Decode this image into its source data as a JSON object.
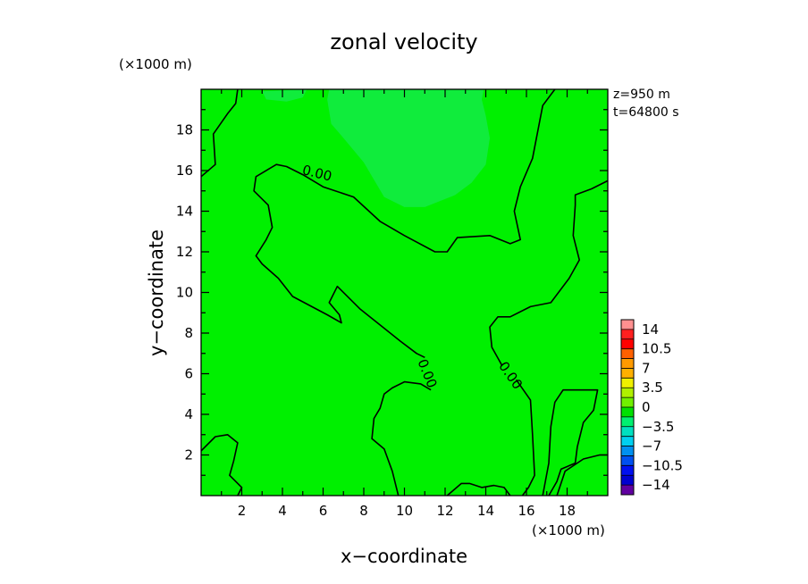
{
  "chart_data": {
    "type": "contour",
    "title": "zonal velocity",
    "xlabel": "x−coordinate",
    "ylabel": "y−coordinate",
    "x_unit": "(×1000 m)",
    "y_unit": "(×1000 m)",
    "xlim": [
      0,
      20
    ],
    "ylim": [
      0,
      20
    ],
    "x_ticks": [
      2,
      4,
      6,
      8,
      10,
      12,
      14,
      16,
      18
    ],
    "y_ticks": [
      2,
      4,
      6,
      8,
      10,
      12,
      14,
      16,
      18
    ],
    "x_tick_labels": [
      "2",
      "4",
      "6",
      "8",
      "10",
      "12",
      "14",
      "16",
      "18"
    ],
    "y_tick_labels": [
      "2",
      "4",
      "6",
      "8",
      "10",
      "12",
      "14",
      "16",
      "18"
    ],
    "info": [
      "z=950 m",
      "t=64800 s"
    ],
    "contour_labels": [
      "0.00",
      "0.00",
      "0.00"
    ],
    "zero_contours": [
      [
        [
          0,
          15.7
        ],
        [
          0.7,
          16.3
        ],
        [
          0.6,
          17.8
        ],
        [
          1.3,
          18.8
        ],
        [
          1.7,
          19.3
        ],
        [
          1.8,
          20
        ]
      ],
      [
        [
          11,
          6.8
        ],
        [
          10.6,
          7.0
        ],
        [
          9.8,
          7.6
        ],
        [
          7.8,
          9.2
        ],
        [
          6.7,
          10.3
        ],
        [
          6.3,
          9.5
        ],
        [
          6.8,
          8.9
        ],
        [
          6.9,
          8.5
        ],
        [
          6.2,
          8.9
        ],
        [
          4.5,
          9.8
        ],
        [
          3.8,
          10.7
        ],
        [
          3.0,
          11.4
        ],
        [
          2.7,
          11.8
        ],
        [
          3.2,
          12.6
        ],
        [
          3.5,
          13.2
        ],
        [
          3.3,
          14.3
        ],
        [
          2.6,
          15.0
        ],
        [
          2.7,
          15.7
        ],
        [
          3.7,
          16.3
        ],
        [
          4.2,
          16.2
        ],
        [
          5.0,
          15.8
        ],
        [
          6.0,
          15.2
        ],
        [
          7.5,
          14.7
        ],
        [
          8.8,
          13.5
        ],
        [
          10.0,
          12.8
        ],
        [
          11.5,
          12.0
        ],
        [
          12.1,
          12.0
        ],
        [
          12.6,
          12.7
        ],
        [
          14.2,
          12.8
        ],
        [
          15.2,
          12.4
        ],
        [
          15.7,
          12.6
        ],
        [
          15.4,
          14.0
        ],
        [
          15.7,
          15.2
        ],
        [
          16.3,
          16.6
        ],
        [
          16.8,
          19.2
        ],
        [
          17.4,
          20
        ]
      ],
      [
        [
          11.3,
          5.2
        ],
        [
          10.8,
          5.5
        ],
        [
          10.0,
          5.6
        ],
        [
          9.4,
          5.3
        ],
        [
          9.0,
          5.0
        ],
        [
          8.8,
          4.3
        ],
        [
          8.5,
          3.8
        ],
        [
          8.4,
          2.8
        ],
        [
          9.0,
          2.3
        ],
        [
          9.4,
          1.2
        ],
        [
          9.7,
          0
        ]
      ],
      [
        [
          14.8,
          6.4
        ],
        [
          14.3,
          7.3
        ],
        [
          14.2,
          8.3
        ],
        [
          14.6,
          8.8
        ],
        [
          15.2,
          8.8
        ],
        [
          16.2,
          9.3
        ],
        [
          17.2,
          9.5
        ],
        [
          18.1,
          10.7
        ],
        [
          18.6,
          11.6
        ],
        [
          18.3,
          12.8
        ],
        [
          18.4,
          14.3
        ],
        [
          18.4,
          14.8
        ],
        [
          19.2,
          15.1
        ],
        [
          20,
          15.5
        ]
      ],
      [
        [
          15.5,
          5.7
        ],
        [
          16.2,
          4.7
        ],
        [
          16.3,
          3.0
        ],
        [
          16.4,
          1.0
        ],
        [
          16.1,
          0.4
        ],
        [
          15.8,
          0
        ]
      ],
      [
        [
          0,
          2.2
        ],
        [
          0.7,
          2.9
        ],
        [
          1.3,
          3.0
        ],
        [
          1.8,
          2.6
        ],
        [
          1.6,
          1.7
        ],
        [
          1.4,
          1.0
        ],
        [
          2.0,
          0.4
        ],
        [
          1.8,
          0
        ]
      ],
      [
        [
          12.1,
          0
        ],
        [
          12.8,
          0.6
        ],
        [
          13.2,
          0.6
        ],
        [
          13.8,
          0.4
        ],
        [
          14.4,
          0.5
        ],
        [
          14.9,
          0.4
        ],
        [
          15.2,
          0
        ]
      ],
      [
        [
          16.8,
          0
        ],
        [
          17.1,
          1.6
        ],
        [
          17.2,
          3.4
        ],
        [
          17.4,
          4.6
        ],
        [
          17.8,
          5.2
        ],
        [
          18.5,
          5.2
        ],
        [
          19.5,
          5.2
        ],
        [
          19.3,
          4.2
        ],
        [
          18.8,
          3.6
        ],
        [
          18.5,
          2.4
        ],
        [
          18.4,
          1.6
        ],
        [
          17.7,
          1.3
        ],
        [
          17.5,
          0.7
        ],
        [
          17.1,
          0
        ]
      ],
      [
        [
          17.5,
          0
        ],
        [
          17.9,
          1.2
        ],
        [
          18.8,
          1.8
        ],
        [
          19.6,
          2.0
        ],
        [
          20,
          2.0
        ]
      ]
    ],
    "light_region": [
      [
        6.3,
        20
      ],
      [
        6.2,
        19.5
      ],
      [
        6.4,
        18.3
      ],
      [
        7.0,
        17.6
      ],
      [
        8.0,
        16.4
      ],
      [
        9.0,
        14.7
      ],
      [
        10.0,
        14.2
      ],
      [
        11.0,
        14.2
      ],
      [
        12.5,
        14.8
      ],
      [
        13.3,
        15.4
      ],
      [
        14.0,
        16.3
      ],
      [
        14.2,
        17.6
      ],
      [
        14.0,
        18.7
      ],
      [
        13.8,
        19.5
      ],
      [
        13.9,
        20
      ]
    ],
    "light_region_2": [
      [
        3.0,
        19.9
      ],
      [
        3.2,
        19.5
      ],
      [
        4.2,
        19.4
      ],
      [
        5.0,
        19.6
      ],
      [
        5.2,
        20
      ]
    ],
    "fill_color": "#00f000",
    "light_color": "#10ec3c",
    "colorbar": {
      "labels": [
        "14",
        "10.5",
        "7",
        "3.5",
        "0",
        "−3.5",
        "−7",
        "−10.5",
        "−14"
      ],
      "colors_top_to_bottom": [
        "#ff9090",
        "#ff2020",
        "#ff0000",
        "#ff6000",
        "#ff9a00",
        "#ffb000",
        "#f0f000",
        "#b0f000",
        "#70f000",
        "#00e000",
        "#00f070",
        "#00e0c0",
        "#00d0f0",
        "#0090f0",
        "#0050f0",
        "#0010f0",
        "#0000d0",
        "#6000a0"
      ]
    }
  }
}
